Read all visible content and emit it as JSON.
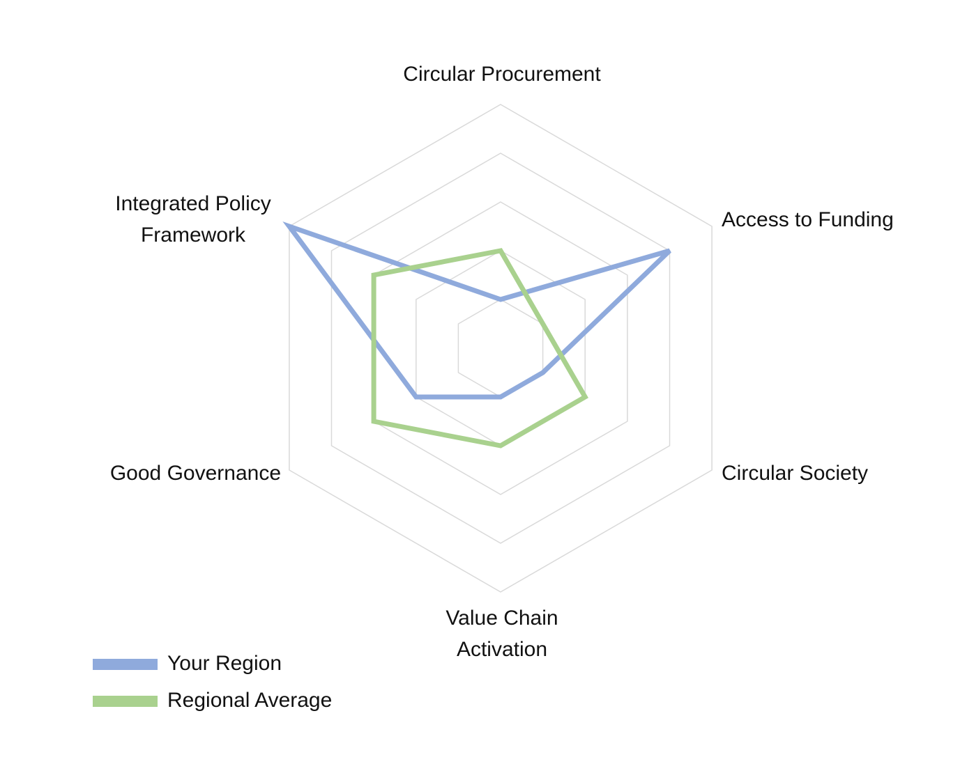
{
  "chart_data": {
    "type": "radar",
    "categories": [
      "Circular Procurement",
      "Access to Funding",
      "Circular Society",
      "Value Chain Activation",
      "Good Governance",
      "Integrated Policy Framework"
    ],
    "category_lines": [
      [
        "Circular Procurement"
      ],
      [
        "Access to Funding"
      ],
      [
        "Circular Society"
      ],
      [
        "Value Chain",
        "Activation"
      ],
      [
        "Good Governance"
      ],
      [
        "Integrated Policy",
        "Framework"
      ]
    ],
    "series": [
      {
        "name": "Your Region",
        "color": "#8faadc",
        "values": [
          1.0,
          4.0,
          1.0,
          1.0,
          2.0,
          5.0
        ]
      },
      {
        "name": "Regional Average",
        "color": "#a9d18e",
        "values": [
          2.0,
          1.0,
          2.0,
          2.0,
          3.0,
          3.0
        ]
      }
    ],
    "rmax": 5,
    "rings": 5,
    "grid": true,
    "legend": "bottom-left"
  }
}
